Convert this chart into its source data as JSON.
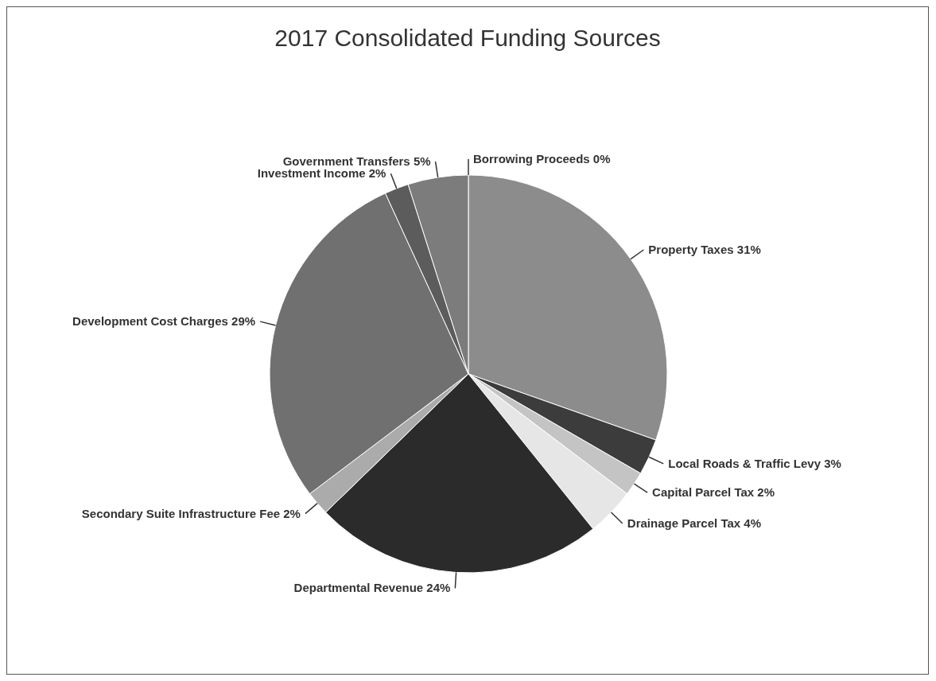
{
  "chart_data": {
    "type": "pie",
    "title": "2017 Consolidated Funding Sources",
    "categories": [
      "Borrowing Proceeds",
      "Property Taxes",
      "Local Roads & Traffic Levy",
      "Capital Parcel Tax",
      "Drainage Parcel Tax",
      "Departmental Revenue",
      "Secondary Suite Infrastructure Fee",
      "Development Cost Charges",
      "Investment Income",
      "Government Transfers"
    ],
    "values": [
      0,
      31,
      3,
      2,
      4,
      24,
      2,
      29,
      2,
      5
    ],
    "value_labels": [
      "0%",
      "31%",
      "3%",
      "2%",
      "4%",
      "24%",
      "2%",
      "29%",
      "2%",
      "5%"
    ],
    "colors": [
      "#9a9a9a",
      "#8c8c8c",
      "#3c3c3c",
      "#c4c4c4",
      "#e6e6e6",
      "#2b2b2b",
      "#ababab",
      "#707070",
      "#5c5c5c",
      "#7c7c7c"
    ]
  }
}
